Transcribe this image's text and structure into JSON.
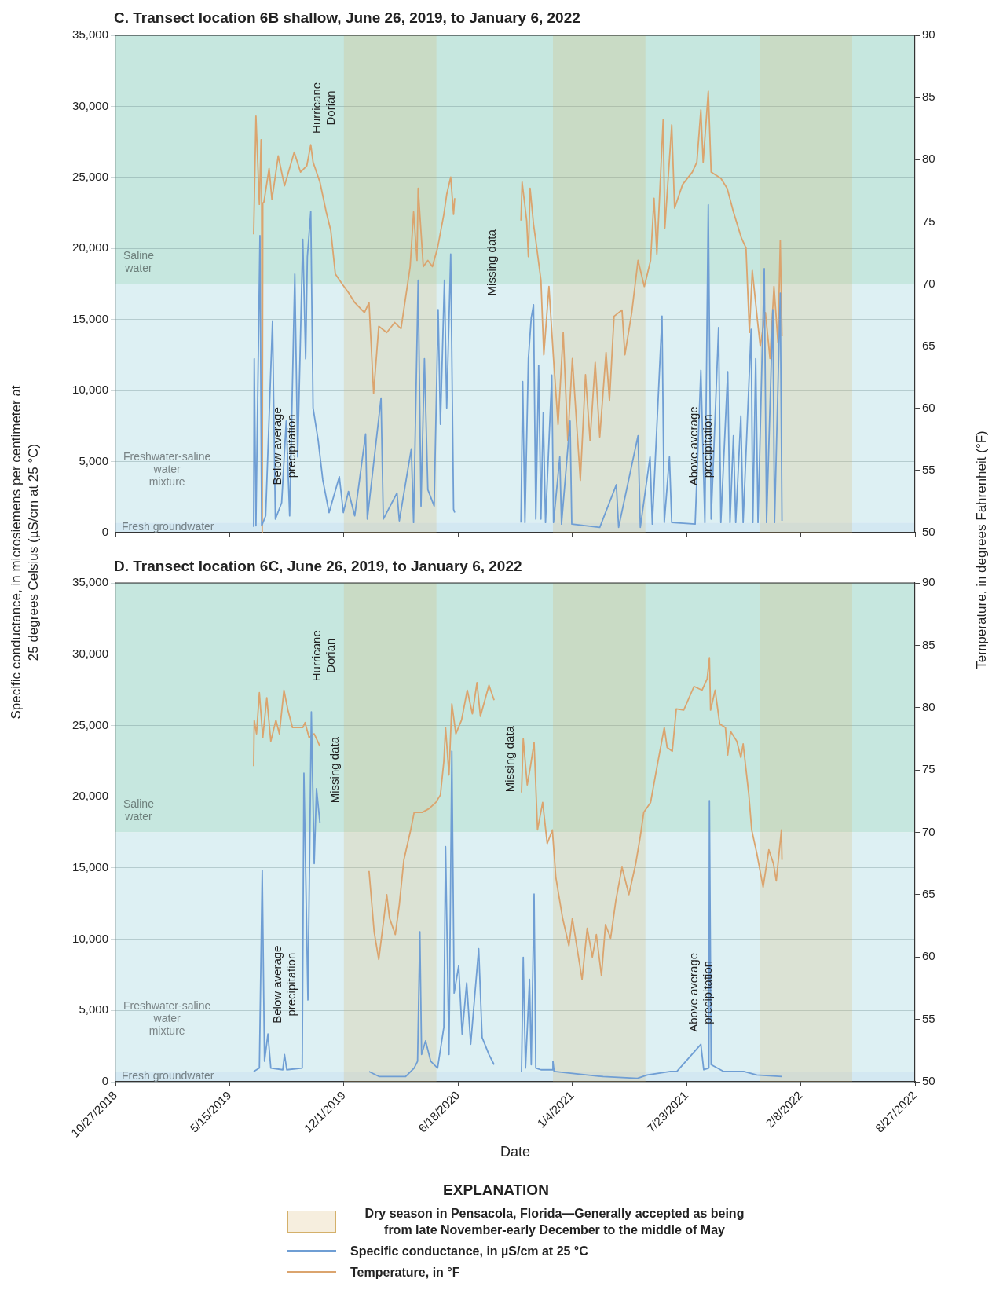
{
  "chart_data": [
    {
      "type": "line",
      "title": "C. Transect location 6B shallow, June 26, 2019, to January 6, 2022",
      "ylabel": "Specific conductance, in microsiemens per centimeter at 25 degrees Celsius (µS/cm at 25 °C)",
      "y2label": "Temperature, in degrees Fahrenheit (°F)",
      "xlim": [
        "2018-10-27",
        "2022-08-27"
      ],
      "xticks": [
        {
          "value": "2018-10-27",
          "label": null
        },
        {
          "value": "2019-05-15",
          "label": null
        },
        {
          "value": "2019-12-01",
          "label": null
        },
        {
          "value": "2020-06-18",
          "label": null
        },
        {
          "value": "2021-01-04",
          "label": null
        },
        {
          "value": "2021-07-23",
          "label": null
        },
        {
          "value": "2022-02-08",
          "label": null
        },
        {
          "value": "2022-08-27",
          "label": null
        }
      ],
      "ylim": [
        0,
        35000
      ],
      "yticks": [
        0,
        {
          "value": 5000,
          "label": "5,000"
        },
        {
          "value": 10000,
          "label": "10,000"
        },
        {
          "value": 15000,
          "label": "15,000"
        },
        {
          "value": 20000,
          "label": "20,000"
        },
        {
          "value": 25000,
          "label": "25,000"
        },
        {
          "value": 30000,
          "label": "30,000"
        },
        {
          "value": 35000,
          "label": "35,000"
        }
      ],
      "y2lim": [
        50,
        90
      ],
      "y2ticks": [
        50,
        55,
        60,
        65,
        70,
        75,
        80,
        85,
        90
      ],
      "tick_labels": "y",
      "grid": "y",
      "marker": "none",
      "bands": [
        {
          "axis": "y",
          "from": 17500,
          "to": 35000,
          "label": "Saline water",
          "color": "#c6e7df"
        },
        {
          "axis": "y",
          "from": 700,
          "to": 17500,
          "label": "Freshwater-saline water mixture",
          "color": "#ddf0f3"
        },
        {
          "axis": "y",
          "from": 0,
          "to": 700,
          "label": "Fresh groundwater",
          "color": "#d3e8f2"
        },
        {
          "axis": "x",
          "from": "2019-12-01",
          "to": "2020-05-11",
          "color": "#d4b06a"
        },
        {
          "axis": "x",
          "from": "2020-12-01",
          "to": "2021-05-12",
          "color": "#d4b06a"
        },
        {
          "axis": "x",
          "from": "2021-11-28",
          "to": "2022-05-09",
          "color": "#d4b06a"
        }
      ],
      "annotations": [
        "Hurricane Dorian",
        "Below average precipitation",
        "Missing data",
        "Above average precipitation"
      ],
      "series": [
        {
          "color": "#6f9ed4",
          "x": [
            "2019-06-26",
            "2019-06-27",
            "2019-06-30",
            "2019-07-07",
            "2019-07-10",
            "2019-07-17",
            "2019-07-29",
            "2019-08-03",
            "2019-08-14",
            "2019-08-22",
            "2019-08-28",
            "2019-09-06",
            "2019-09-11",
            "2019-09-20",
            "2019-09-25",
            "2019-09-28",
            "2019-10-04",
            "2019-10-08",
            "2019-10-17",
            "2019-10-25",
            "2019-11-05",
            "2019-11-23",
            "2019-11-30",
            "2019-12-09",
            "2019-12-20",
            "2020-01-08",
            "2020-01-11",
            "2020-02-04",
            "2020-02-08",
            "2020-03-03",
            "2020-03-07",
            "2020-03-28",
            "2020-04-01",
            "2020-04-09",
            "2020-04-14",
            "2020-04-20",
            "2020-04-26",
            "2020-05-07",
            "2020-05-14",
            "2020-05-18",
            "2020-05-25",
            "2020-05-29",
            "2020-06-05",
            "2020-06-10",
            "2020-06-12",
            "2020-08-01",
            "2020-10-06",
            "2020-10-09",
            "2020-10-13",
            "2020-10-19",
            "2020-10-24",
            "2020-10-28",
            "2020-11-01",
            "2020-11-06",
            "2020-11-10",
            "2020-11-14",
            "2020-11-18",
            "2020-11-29",
            "2020-12-02",
            "2020-12-13",
            "2020-12-16",
            "2020-12-31",
            "2021-01-03",
            "2021-02-21",
            "2021-03-22",
            "2021-03-26",
            "2021-04-29",
            "2021-05-03",
            "2021-05-20",
            "2021-05-24",
            "2021-06-10",
            "2021-06-14",
            "2021-06-23",
            "2021-06-27",
            "2021-08-07",
            "2021-08-17",
            "2021-08-24",
            "2021-08-30",
            "2021-09-04",
            "2021-09-17",
            "2021-09-21",
            "2021-10-03",
            "2021-10-07",
            "2021-10-13",
            "2021-10-17",
            "2021-10-26",
            "2021-10-30",
            "2021-11-13",
            "2021-11-16",
            "2021-11-21",
            "2021-11-25",
            "2021-12-06",
            "2021-12-10",
            "2021-12-21",
            "2021-12-24",
            "2022-01-03",
            "2022-01-06"
          ],
          "values": [
            400,
            12240,
            480,
            20900,
            480,
            1180,
            14900,
            950,
            2100,
            7860,
            1180,
            18200,
            5330,
            20650,
            12240,
            19400,
            22600,
            8780,
            6480,
            3710,
            1410,
            3940,
            1410,
            2900,
            1180,
            6940,
            950,
            9470,
            950,
            2790,
            830,
            5900,
            710,
            17770,
            1870,
            12240,
            3020,
            1870,
            15700,
            7630,
            17770,
            8780,
            19600,
            1640,
            1410,
            null,
            710,
            10630,
            710,
            12240,
            15120,
            16040,
            950,
            11780,
            950,
            8440,
            710,
            11090,
            710,
            5330,
            600,
            7860,
            600,
            370,
            3370,
            370,
            6820,
            370,
            5330,
            600,
            15240,
            710,
            5330,
            710,
            600,
            11430,
            710,
            23070,
            950,
            14430,
            710,
            11320,
            710,
            6820,
            710,
            8210,
            710,
            14310,
            710,
            12240,
            710,
            18580,
            710,
            15700,
            710,
            16850,
            830
          ]
        },
        {
          "color": "#dba46e",
          "axis": "y2",
          "x": [
            "2019-06-26",
            "2019-06-30",
            "2019-07-06",
            "2019-07-09",
            "2019-07-10",
            "2019-07-11",
            "2019-07-12",
            "2019-07-14",
            "2019-07-23",
            "2019-07-28",
            "2019-08-08",
            "2019-08-19",
            "2019-09-05",
            "2019-09-16",
            "2019-09-27",
            "2019-10-04",
            "2019-10-08",
            "2019-10-20",
            "2019-10-31",
            "2019-11-08",
            "2019-11-16",
            "2019-11-28",
            "2019-12-09",
            "2019-12-20",
            "2020-01-06",
            "2020-01-14",
            "2020-01-22",
            "2020-01-31",
            "2020-02-14",
            "2020-02-28",
            "2020-03-10",
            "2020-03-26",
            "2020-04-01",
            "2020-04-07",
            "2020-04-09",
            "2020-04-18",
            "2020-04-26",
            "2020-05-04",
            "2020-05-13",
            "2020-05-24",
            "2020-05-29",
            "2020-06-05",
            "2020-06-10",
            "2020-06-12",
            "2020-08-01",
            "2020-10-06",
            "2020-10-08",
            "2020-10-16",
            "2020-10-19",
            "2020-10-22",
            "2020-10-28",
            "2020-11-01",
            "2020-11-10",
            "2020-11-15",
            "2020-11-24",
            "2020-12-02",
            "2020-12-10",
            "2020-12-19",
            "2020-12-27",
            "2021-01-04",
            "2021-01-18",
            "2021-01-27",
            "2021-02-04",
            "2021-02-13",
            "2021-02-21",
            "2021-03-04",
            "2021-03-10",
            "2021-03-18",
            "2021-04-01",
            "2021-04-06",
            "2021-04-18",
            "2021-04-29",
            "2021-05-10",
            "2021-05-21",
            "2021-05-27",
            "2021-06-01",
            "2021-06-12",
            "2021-06-15",
            "2021-06-27",
            "2021-07-02",
            "2021-07-16",
            "2021-08-02",
            "2021-08-10",
            "2021-08-17",
            "2021-08-21",
            "2021-08-30",
            "2021-09-04",
            "2021-09-21",
            "2021-10-02",
            "2021-10-13",
            "2021-10-27",
            "2021-11-04",
            "2021-11-10",
            "2021-11-15",
            "2021-11-24",
            "2021-11-29",
            "2021-12-08",
            "2021-12-16",
            "2021-12-23",
            "2021-12-30",
            "2022-01-03",
            "2022-01-06"
          ],
          "values": [
            74.0,
            83.5,
            76.4,
            81.6,
            76.5,
            50,
            76.5,
            76.6,
            79.3,
            76.8,
            80.3,
            77.9,
            80.6,
            79.0,
            79.5,
            81.2,
            79.8,
            78.2,
            75.8,
            74.3,
            70.8,
            70.0,
            69.3,
            68.5,
            67.7,
            68.5,
            61.2,
            66.6,
            66.1,
            66.9,
            66.4,
            71.4,
            75.8,
            71.9,
            77.7,
            71.4,
            71.9,
            71.4,
            72.9,
            75.6,
            77.2,
            78.6,
            75.6,
            76.9,
            null,
            75.1,
            78.2,
            75.1,
            72.2,
            77.7,
            74.8,
            73.5,
            70.3,
            64.3,
            69.8,
            64.0,
            58.7,
            66.1,
            57.4,
            64.0,
            54.2,
            62.7,
            57.4,
            63.7,
            57.7,
            64.5,
            60.6,
            67.4,
            67.9,
            64.3,
            67.7,
            71.9,
            69.8,
            71.9,
            76.9,
            72.4,
            83.2,
            74.5,
            82.8,
            76.1,
            78.0,
            79.0,
            79.8,
            84.0,
            79.8,
            85.5,
            79.0,
            78.5,
            77.7,
            75.8,
            73.7,
            72.9,
            66.1,
            71.1,
            67.1,
            65.0,
            67.7,
            64.0,
            69.8,
            65.3,
            73.5,
            65.8
          ]
        }
      ]
    },
    {
      "type": "line",
      "title": "D. Transect location 6C, June 26, 2019, to January 6, 2022",
      "xlabel": "Date",
      "legend_title": "EXPLANATION",
      "legend": "bottom",
      "xlim": [
        "2018-10-27",
        "2022-08-27"
      ],
      "xticks": [
        {
          "value": "2018-10-27",
          "label": "10/27/2018"
        },
        {
          "value": "2019-05-15",
          "label": "5/15/2019"
        },
        {
          "value": "2019-12-01",
          "label": "12/1/2019"
        },
        {
          "value": "2020-06-18",
          "label": "6/18/2020"
        },
        {
          "value": "2021-01-04",
          "label": "1/4/2021"
        },
        {
          "value": "2021-07-23",
          "label": "7/23/2021"
        },
        {
          "value": "2022-02-08",
          "label": "2/8/2022"
        },
        {
          "value": "2022-08-27",
          "label": "8/27/2022"
        }
      ],
      "ylim": [
        0,
        35000
      ],
      "yticks": [
        0,
        {
          "value": 5000,
          "label": "5,000"
        },
        {
          "value": 10000,
          "label": "10,000"
        },
        {
          "value": 15000,
          "label": "15,000"
        },
        {
          "value": 20000,
          "label": "20,000"
        },
        {
          "value": 25000,
          "label": "25,000"
        },
        {
          "value": 30000,
          "label": "30,000"
        },
        {
          "value": 35000,
          "label": "35,000"
        }
      ],
      "y2lim": [
        50,
        90
      ],
      "y2ticks": [
        50,
        55,
        60,
        65,
        70,
        75,
        80,
        85,
        90
      ],
      "grid": "y",
      "marker": "none",
      "bands": [
        {
          "axis": "y",
          "from": 17500,
          "to": 35000,
          "label": "Saline water",
          "color": "#c6e7df"
        },
        {
          "axis": "y",
          "from": 700,
          "to": 17500,
          "label": "Freshwater-saline water mixture",
          "color": "#ddf0f3"
        },
        {
          "axis": "y",
          "from": 0,
          "to": 700,
          "label": "Fresh groundwater",
          "color": "#d3e8f2"
        },
        {
          "axis": "x",
          "from": "2019-12-01",
          "to": "2020-05-11",
          "color": "#d4b06a",
          "label": "Dry season in Pensacola, Florida—Generally accepted as being from late November-early December to the middle of May"
        },
        {
          "axis": "x",
          "from": "2020-12-01",
          "to": "2021-05-12",
          "color": "#d4b06a"
        },
        {
          "axis": "x",
          "from": "2021-11-28",
          "to": "2022-05-09",
          "color": "#d4b06a"
        }
      ],
      "annotations": [
        "Hurricane Dorian",
        "Missing data",
        "Below average precipitation",
        "Missing data",
        "Above average precipitation"
      ],
      "series": [
        {
          "name": "Specific conductance, in µS/cm at 25 °C",
          "color": "#6f9ed4",
          "x": [
            "2019-06-26",
            "2019-07-06",
            "2019-07-11",
            "2019-07-15",
            "2019-07-21",
            "2019-07-26",
            "2019-08-16",
            "2019-08-19",
            "2019-08-23",
            "2019-09-19",
            "2019-09-22",
            "2019-09-29",
            "2019-10-05",
            "2019-10-10",
            "2019-10-14",
            "2019-10-20",
            "2019-12-01",
            "2020-01-14",
            "2020-02-01",
            "2020-03-18",
            "2020-04-02",
            "2020-04-08",
            "2020-04-12",
            "2020-04-15",
            "2020-04-22",
            "2020-05-01",
            "2020-05-13",
            "2020-05-24",
            "2020-05-27",
            "2020-06-02",
            "2020-06-07",
            "2020-06-11",
            "2020-06-19",
            "2020-06-25",
            "2020-07-03",
            "2020-07-10",
            "2020-07-24",
            "2020-07-30",
            "2020-08-11",
            "2020-08-20",
            "2020-09-15",
            "2020-10-07",
            "2020-10-10",
            "2020-10-14",
            "2020-10-21",
            "2020-10-24",
            "2020-10-29",
            "2020-11-01",
            "2020-11-10",
            "2020-11-30",
            "2020-12-01",
            "2020-12-03",
            "2021-02-27",
            "2021-04-28",
            "2021-05-15",
            "2021-06-25",
            "2021-07-06",
            "2021-08-17",
            "2021-08-22",
            "2021-08-31",
            "2021-09-01",
            "2021-09-04",
            "2021-09-26",
            "2021-10-31",
            "2021-11-23",
            "2022-01-06"
          ],
          "values": [
            720,
            960,
            14830,
            1440,
            3350,
            960,
            840,
            1910,
            840,
            960,
            21650,
            5740,
            25950,
            15310,
            20570,
            18180,
            null,
            720,
            360,
            360,
            960,
            1440,
            10520,
            1910,
            2870,
            1440,
            960,
            3830,
            16500,
            1910,
            23200,
            6220,
            8130,
            3350,
            6940,
            2630,
            9330,
            3110,
            1910,
            1200,
            null,
            720,
            8730,
            960,
            7180,
            1200,
            13160,
            960,
            840,
            840,
            1440,
            720,
            360,
            240,
            480,
            720,
            720,
            2630,
            840,
            960,
            19730,
            1200,
            720,
            720,
            480,
            360
          ]
        },
        {
          "name": "Temperature, in °F",
          "color": "#dba46e",
          "axis": "y2",
          "x": [
            "2019-06-26",
            "2019-06-27",
            "2019-07-01",
            "2019-07-06",
            "2019-07-12",
            "2019-07-19",
            "2019-07-26",
            "2019-08-04",
            "2019-08-10",
            "2019-08-18",
            "2019-08-25",
            "2019-09-02",
            "2019-09-20",
            "2019-09-24",
            "2019-10-01",
            "2019-10-10",
            "2019-10-20",
            "2019-12-01",
            "2020-01-14",
            "2020-01-23",
            "2020-01-31",
            "2020-02-09",
            "2020-02-14",
            "2020-02-19",
            "2020-02-29",
            "2020-03-07",
            "2020-03-15",
            "2020-03-27",
            "2020-04-02",
            "2020-04-16",
            "2020-04-28",
            "2020-05-10",
            "2020-05-18",
            "2020-05-24",
            "2020-05-27",
            "2020-06-02",
            "2020-06-07",
            "2020-06-14",
            "2020-06-24",
            "2020-07-04",
            "2020-07-13",
            "2020-07-21",
            "2020-07-27",
            "2020-08-11",
            "2020-08-20",
            "2020-09-15",
            "2020-10-07",
            "2020-10-10",
            "2020-10-17",
            "2020-10-23",
            "2020-10-29",
            "2020-11-04",
            "2020-11-13",
            "2020-11-21",
            "2020-11-30",
            "2020-12-06",
            "2020-12-18",
            "2020-12-29",
            "2021-01-04",
            "2021-01-21",
            "2021-01-30",
            "2021-02-08",
            "2021-02-15",
            "2021-02-24",
            "2021-03-03",
            "2021-03-12",
            "2021-03-21",
            "2021-04-01",
            "2021-04-13",
            "2021-04-25",
            "2021-05-03",
            "2021-05-09",
            "2021-05-21",
            "2021-06-01",
            "2021-06-14",
            "2021-06-19",
            "2021-06-28",
            "2021-07-05",
            "2021-07-18",
            "2021-08-05",
            "2021-08-19",
            "2021-08-28",
            "2021-09-01",
            "2021-09-03",
            "2021-09-11",
            "2021-09-19",
            "2021-09-29",
            "2021-10-03",
            "2021-10-08",
            "2021-10-19",
            "2021-10-26",
            "2021-10-30",
            "2021-11-09",
            "2021-11-14",
            "2021-11-23",
            "2021-12-04",
            "2021-12-14",
            "2021-12-22",
            "2021-12-27",
            "2022-01-05",
            "2022-01-06"
          ],
          "values": [
            75.3,
            79.0,
            77.9,
            81.2,
            77.6,
            80.8,
            77.3,
            79.0,
            77.9,
            81.4,
            79.8,
            78.4,
            78.4,
            78.8,
            77.6,
            77.9,
            76.9,
            null,
            66.9,
            62.0,
            59.8,
            63.1,
            65.0,
            63.1,
            61.8,
            64.2,
            67.8,
            70.2,
            71.6,
            71.6,
            71.9,
            72.4,
            73.0,
            75.7,
            78.4,
            74.6,
            80.3,
            77.9,
            79.0,
            81.4,
            79.5,
            82.0,
            79.3,
            81.8,
            80.6,
            null,
            73.2,
            77.5,
            73.8,
            75.4,
            77.2,
            70.2,
            72.4,
            69.1,
            70.2,
            66.4,
            63.1,
            60.9,
            63.1,
            58.2,
            62.3,
            60.0,
            61.8,
            58.5,
            62.6,
            61.5,
            64.5,
            67.2,
            65.0,
            67.5,
            69.7,
            71.6,
            72.4,
            75.2,
            78.4,
            76.8,
            76.5,
            79.9,
            79.8,
            81.7,
            81.4,
            82.3,
            84.0,
            79.8,
            81.4,
            78.7,
            78.4,
            76.2,
            78.1,
            77.3,
            76.0,
            77.1,
            73.0,
            70.2,
            68.3,
            65.6,
            68.6,
            67.5,
            66.1,
            70.2,
            67.8
          ]
        }
      ]
    }
  ]
}
